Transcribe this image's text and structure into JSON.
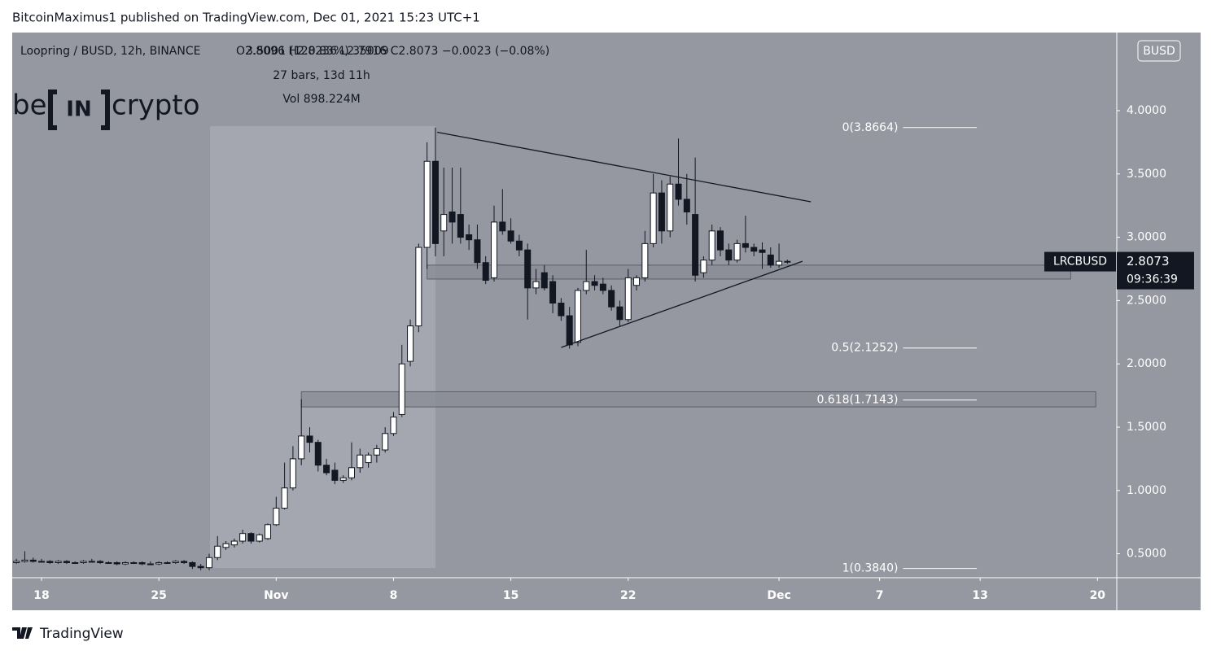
{
  "header": {
    "text": "BitcoinMaximus1 published on TradingView.com, Dec 01, 2021 15:23 UTC+1"
  },
  "footer": {
    "brand": "TradingView"
  },
  "chart_data": {
    "type": "candlestick",
    "title": "Loopring / BUSD, 12h, BINANCE",
    "ohlc_text": "O2.8096 H2.8236 L2.7916 C2.8073 −0.0023 (−0.08%)",
    "logo": [
      "be",
      "IN",
      "crypto"
    ],
    "currency": "BUSD",
    "symbol": "LRCBUSD",
    "last": 2.8073,
    "countdown": "09:36:39",
    "measure": {
      "text": "3.5001 (120.83%) 35009",
      "bars": "27 bars, 13d 11h",
      "volume": "Vol 898.224M",
      "x": [
        10.05,
        23.5
      ],
      "y": [
        0.388,
        3.878
      ]
    },
    "xlim": [
      -1.75,
      64.15
    ],
    "ylim": [
      0.311,
      4.617
    ],
    "xticks": [
      {
        "value": 0,
        "label": "18"
      },
      {
        "value": 7,
        "label": "25"
      },
      {
        "value": 14,
        "label": "Nov"
      },
      {
        "value": 21,
        "label": "8"
      },
      {
        "value": 28,
        "label": "15"
      },
      {
        "value": 35,
        "label": "22"
      },
      {
        "value": 44,
        "label": "Dec"
      },
      {
        "value": 50,
        "label": "7"
      },
      {
        "value": 56,
        "label": "13"
      },
      {
        "value": 63,
        "label": "20"
      }
    ],
    "yticks": [
      {
        "value": 0.5,
        "label": "0.5000"
      },
      {
        "value": 1,
        "label": "1.0000"
      },
      {
        "value": 1.5,
        "label": "1.5000"
      },
      {
        "value": 2,
        "label": "2.0000"
      },
      {
        "value": 2.5,
        "label": "2.5000"
      },
      {
        "value": 3,
        "label": "3.0000"
      },
      {
        "value": 3.5,
        "label": "3.5000"
      },
      {
        "value": 4,
        "label": "4.0000"
      }
    ],
    "x": [
      -1.5,
      -1,
      -0.5,
      0,
      0.5,
      1,
      1.5,
      2,
      2.5,
      3,
      3.5,
      4,
      4.5,
      5,
      5.5,
      6,
      6.5,
      7,
      7.5,
      8,
      8.5,
      9,
      9.5,
      10,
      10.5,
      11,
      11.5,
      12,
      12.5,
      13,
      13.5,
      14,
      14.5,
      15,
      15.5,
      16,
      16.5,
      17,
      17.5,
      18,
      18.5,
      19,
      19.5,
      20,
      20.5,
      21,
      21.5,
      22,
      22.5,
      23,
      23.5,
      24,
      24.5,
      25,
      25.5,
      26,
      26.5,
      27,
      27.5,
      28,
      28.5,
      29,
      29.5,
      30,
      30.5,
      31,
      31.5,
      32,
      32.5,
      33,
      33.5,
      34,
      34.5,
      35,
      35.5,
      36,
      36.5,
      37,
      37.5,
      38,
      38.5,
      39,
      39.5,
      40,
      40.5,
      41,
      41.5,
      42,
      42.5,
      43,
      43.5,
      44,
      44.5
    ],
    "open": [
      0.43,
      0.44,
      0.45,
      0.44,
      0.44,
      0.43,
      0.44,
      0.43,
      0.43,
      0.44,
      0.44,
      0.43,
      0.43,
      0.42,
      0.43,
      0.43,
      0.42,
      0.42,
      0.43,
      0.43,
      0.44,
      0.43,
      0.4,
      0.39,
      0.47,
      0.55,
      0.57,
      0.6,
      0.66,
      0.6,
      0.62,
      0.73,
      0.86,
      1.02,
      1.25,
      1.43,
      1.38,
      1.2,
      1.16,
      1.08,
      1.1,
      1.18,
      1.22,
      1.28,
      1.32,
      1.45,
      1.6,
      2.02,
      2.3,
      2.92,
      3.6,
      3.05,
      3.2,
      3.18,
      3.02,
      2.98,
      2.8,
      2.68,
      3.12,
      3.05,
      2.97,
      2.9,
      2.6,
      2.72,
      2.65,
      2.48,
      2.38,
      2.17,
      2.58,
      2.65,
      2.63,
      2.58,
      2.45,
      2.35,
      2.62,
      2.68,
      2.95,
      3.35,
      3.05,
      3.42,
      3.3,
      3.18,
      2.72,
      2.82,
      3.05,
      2.9,
      2.82,
      2.95,
      2.92,
      2.9,
      2.86,
      2.78,
      2.8096
    ],
    "high": [
      0.46,
      0.52,
      0.47,
      0.46,
      0.45,
      0.45,
      0.45,
      0.44,
      0.45,
      0.46,
      0.45,
      0.44,
      0.44,
      0.44,
      0.44,
      0.44,
      0.44,
      0.44,
      0.44,
      0.45,
      0.45,
      0.44,
      0.42,
      0.5,
      0.64,
      0.6,
      0.62,
      0.69,
      0.67,
      0.66,
      0.74,
      0.95,
      1.22,
      1.35,
      1.72,
      1.5,
      1.4,
      1.25,
      1.22,
      1.12,
      1.38,
      1.33,
      1.3,
      1.36,
      1.5,
      1.62,
      2.15,
      2.35,
      2.95,
      3.75,
      3.8664,
      3.55,
      3.55,
      3.55,
      3.1,
      3.1,
      2.85,
      3.25,
      3.38,
      3.15,
      3.02,
      2.95,
      2.75,
      2.78,
      2.7,
      2.52,
      2.45,
      2.6,
      2.9,
      2.7,
      2.68,
      2.62,
      2.5,
      2.75,
      2.7,
      3.05,
      3.5,
      3.45,
      3.48,
      3.78,
      3.5,
      3.63,
      2.85,
      3.1,
      3.08,
      2.95,
      2.98,
      3.17,
      2.95,
      2.96,
      2.92,
      2.95,
      2.8236
    ],
    "low": [
      0.42,
      0.43,
      0.43,
      0.43,
      0.42,
      0.42,
      0.42,
      0.42,
      0.42,
      0.43,
      0.42,
      0.42,
      0.41,
      0.41,
      0.42,
      0.41,
      0.41,
      0.41,
      0.42,
      0.42,
      0.42,
      0.38,
      0.37,
      0.37,
      0.45,
      0.53,
      0.55,
      0.58,
      0.58,
      0.59,
      0.61,
      0.72,
      0.85,
      1.0,
      1.2,
      1.3,
      1.15,
      1.12,
      1.05,
      1.06,
      1.08,
      1.14,
      1.18,
      1.22,
      1.3,
      1.43,
      1.58,
      1.98,
      2.25,
      2.75,
      2.85,
      2.85,
      2.95,
      2.95,
      2.9,
      2.75,
      2.63,
      2.65,
      3.02,
      2.95,
      2.85,
      2.35,
      2.55,
      2.58,
      2.4,
      2.34,
      2.12,
      2.14,
      2.55,
      2.58,
      2.55,
      2.42,
      2.3,
      2.33,
      2.58,
      2.65,
      2.92,
      2.95,
      3.0,
      3.25,
      3.1,
      2.65,
      2.68,
      2.78,
      2.85,
      2.78,
      2.8,
      2.88,
      2.85,
      2.75,
      2.76,
      2.76,
      2.7916
    ],
    "close": [
      0.44,
      0.45,
      0.44,
      0.44,
      0.43,
      0.44,
      0.43,
      0.43,
      0.44,
      0.44,
      0.43,
      0.43,
      0.42,
      0.43,
      0.43,
      0.42,
      0.42,
      0.43,
      0.43,
      0.44,
      0.43,
      0.4,
      0.39,
      0.47,
      0.56,
      0.58,
      0.6,
      0.66,
      0.6,
      0.65,
      0.73,
      0.86,
      1.02,
      1.25,
      1.43,
      1.38,
      1.2,
      1.14,
      1.08,
      1.1,
      1.18,
      1.28,
      1.28,
      1.33,
      1.45,
      1.58,
      2.0,
      2.3,
      2.92,
      3.6,
      2.95,
      3.18,
      3.12,
      3.0,
      2.98,
      2.8,
      2.66,
      3.12,
      3.05,
      2.97,
      2.9,
      2.6,
      2.65,
      2.6,
      2.48,
      2.38,
      2.15,
      2.58,
      2.65,
      2.62,
      2.58,
      2.45,
      2.35,
      2.68,
      2.68,
      2.95,
      3.35,
      3.05,
      3.42,
      3.3,
      3.2,
      2.7,
      2.82,
      3.05,
      2.9,
      2.82,
      2.95,
      2.92,
      2.89,
      2.88,
      2.78,
      2.81,
      2.8073
    ],
    "up_color": "#ffffff",
    "down_color": "#131722",
    "zones": [
      {
        "x": [
          23.0,
          61.4
        ],
        "y": [
          2.67,
          2.78
        ]
      },
      {
        "x": [
          15.5,
          62.9
        ],
        "y": [
          1.66,
          1.78
        ]
      }
    ],
    "trendlines": [
      {
        "x": [
          23.6,
          45.9
        ],
        "y": [
          3.83,
          3.28
        ]
      },
      {
        "x": [
          31.0,
          45.4
        ],
        "y": [
          2.13,
          2.81
        ]
      }
    ],
    "fib_x": [
      51.4,
      55.8
    ],
    "fib_levels": [
      {
        "label": "0(3.8664)",
        "value": 3.8664
      },
      {
        "label": "0.5(2.1252)",
        "value": 2.1252
      },
      {
        "label": "0.618(1.7143)",
        "value": 1.7143
      },
      {
        "label": "1(0.3840)",
        "value": 0.384
      }
    ]
  }
}
